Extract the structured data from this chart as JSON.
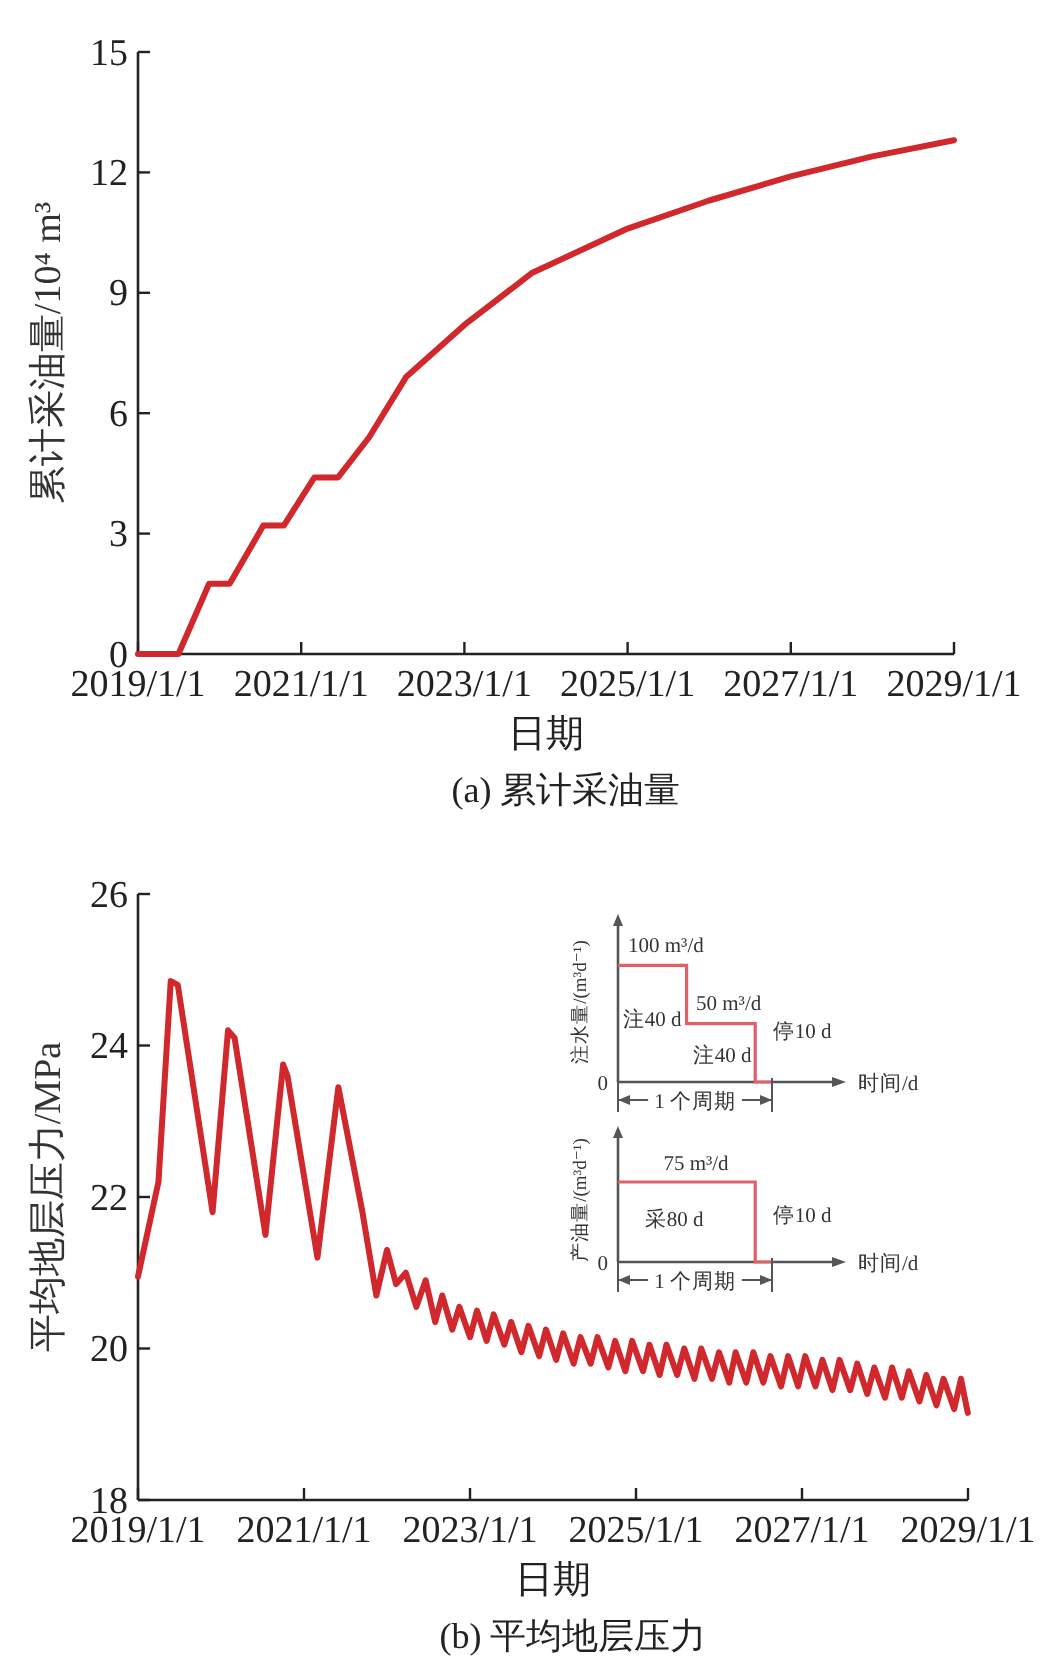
{
  "chart_data": [
    {
      "type": "line",
      "title": "(a) 累计采油量",
      "xlabel": "日期",
      "ylabel": "累计采油量/10⁴ m³",
      "color": "#d0282c",
      "x": [
        "2019-01-01",
        "2019-07-01",
        "2019-11-15",
        "2020-02-15",
        "2020-07-15",
        "2020-10-15",
        "2021-03-01",
        "2021-06-15",
        "2021-11-01",
        "2022-04-15",
        "2023-01-01",
        "2023-11-01",
        "2025-01-01",
        "2026-01-01",
        "2027-01-01",
        "2028-01-01",
        "2029-01-01"
      ],
      "values": [
        0,
        0,
        1.75,
        1.75,
        3.2,
        3.2,
        4.4,
        4.4,
        5.4,
        6.9,
        8.2,
        9.5,
        10.6,
        11.3,
        11.9,
        12.4,
        12.8
      ],
      "xlim": [
        "2019-01-01",
        "2029-01-01"
      ],
      "xticks": [
        {
          "value": "2019-01-01",
          "label": "2019/1/1"
        },
        {
          "value": "2021-01-01",
          "label": "2021/1/1"
        },
        {
          "value": "2023-01-01",
          "label": "2023/1/1"
        },
        {
          "value": "2025-01-01",
          "label": "2025/1/1"
        },
        {
          "value": "2027-01-01",
          "label": "2027/1/1"
        },
        {
          "value": "2029-01-01",
          "label": "2029/1/1"
        }
      ],
      "ylim": [
        0,
        15
      ],
      "yticks": [
        0,
        3,
        6,
        9,
        12,
        15
      ]
    },
    {
      "type": "line",
      "title": "(b) 平均地层压力",
      "xlabel": "日期",
      "ylabel": "平均地层压力/MPa",
      "color": "#d0282c",
      "x": [
        "2019-01-01",
        "2019-04-01",
        "2019-05-25",
        "2019-06-25",
        "2019-11-25",
        "2020-02-01",
        "2020-03-01",
        "2020-07-15",
        "2020-10-01",
        "2020-10-20",
        "2021-03-01",
        "2021-06-01",
        "2021-09-15",
        "2021-11-15",
        "2022-01-01",
        "2022-02-10",
        "2022-03-25",
        "2022-05-10",
        "2022-06-20",
        "2022-08-01",
        "2022-09-01",
        "2022-10-15",
        "2022-11-15",
        "2023-01-01",
        "2023-02-01",
        "2023-03-15",
        "2023-04-15",
        "2023-06-01",
        "2023-07-01",
        "2023-08-15",
        "2023-09-15",
        "2023-11-01",
        "2023-12-01",
        "2024-01-15",
        "2024-02-15",
        "2024-04-01",
        "2024-05-01",
        "2024-06-15",
        "2024-07-15",
        "2024-09-01",
        "2024-10-01",
        "2024-11-15",
        "2024-12-15",
        "2025-02-01",
        "2025-03-01",
        "2025-04-15",
        "2025-05-15",
        "2025-07-01",
        "2025-08-01",
        "2025-09-15",
        "2025-10-15",
        "2025-12-01",
        "2026-01-01",
        "2026-02-15",
        "2026-03-15",
        "2026-05-01",
        "2026-06-01",
        "2026-07-15",
        "2026-08-15",
        "2026-10-01",
        "2026-11-01",
        "2026-12-15",
        "2027-01-15",
        "2027-03-01",
        "2027-04-01",
        "2027-05-15",
        "2027-06-15",
        "2027-08-01",
        "2027-09-01",
        "2027-10-15",
        "2027-11-15",
        "2028-01-01",
        "2028-02-01",
        "2028-03-15",
        "2028-04-15",
        "2028-06-01",
        "2028-07-01",
        "2028-08-15",
        "2028-09-15",
        "2028-11-01",
        "2028-12-01",
        "2028-12-31"
      ],
      "values": [
        20.95,
        22.2,
        24.85,
        24.8,
        21.8,
        24.2,
        24.1,
        21.5,
        23.75,
        23.6,
        21.2,
        23.45,
        21.8,
        20.7,
        21.3,
        20.85,
        21.0,
        20.55,
        20.9,
        20.35,
        20.7,
        20.25,
        20.55,
        20.15,
        20.5,
        20.1,
        20.45,
        20.05,
        20.35,
        19.95,
        20.3,
        19.9,
        20.25,
        19.85,
        20.2,
        19.8,
        20.15,
        19.8,
        20.15,
        19.75,
        20.1,
        19.7,
        20.1,
        19.7,
        20.05,
        19.65,
        20.05,
        19.65,
        20.0,
        19.6,
        20.0,
        19.6,
        19.95,
        19.55,
        19.95,
        19.55,
        19.95,
        19.55,
        19.9,
        19.5,
        19.9,
        19.5,
        19.9,
        19.5,
        19.85,
        19.45,
        19.85,
        19.45,
        19.8,
        19.4,
        19.75,
        19.35,
        19.75,
        19.35,
        19.7,
        19.3,
        19.65,
        19.25,
        19.6,
        19.2,
        19.6,
        19.15
      ],
      "xlim": [
        "2019-01-01",
        "2029-01-01"
      ],
      "xticks": [
        {
          "value": "2019-01-01",
          "label": "2019/1/1"
        },
        {
          "value": "2021-01-01",
          "label": "2021/1/1"
        },
        {
          "value": "2023-01-01",
          "label": "2023/1/1"
        },
        {
          "value": "2025-01-01",
          "label": "2025/1/1"
        },
        {
          "value": "2027-01-01",
          "label": "2027/1/1"
        },
        {
          "value": "2029-01-01",
          "label": "2029/1/1"
        }
      ],
      "ylim": [
        18,
        26
      ],
      "yticks": [
        18,
        20,
        22,
        24,
        26
      ]
    },
    {
      "type": "other",
      "xlabel": "时间/d",
      "ylabel": "注水量/(m³d⁻¹)",
      "color": "#e0606a",
      "annotations": [
        "100 m³/d",
        "50 m³/d",
        "注40 d",
        "注40 d",
        "停10 d",
        "0",
        "1 个周期"
      ]
    },
    {
      "type": "other",
      "xlabel": "时间/d",
      "ylabel": "产油量/(m³d⁻¹)",
      "color": "#e0606a",
      "annotations": [
        "75 m³/d",
        "采80 d",
        "停10 d",
        "0",
        "1 个周期"
      ]
    }
  ]
}
